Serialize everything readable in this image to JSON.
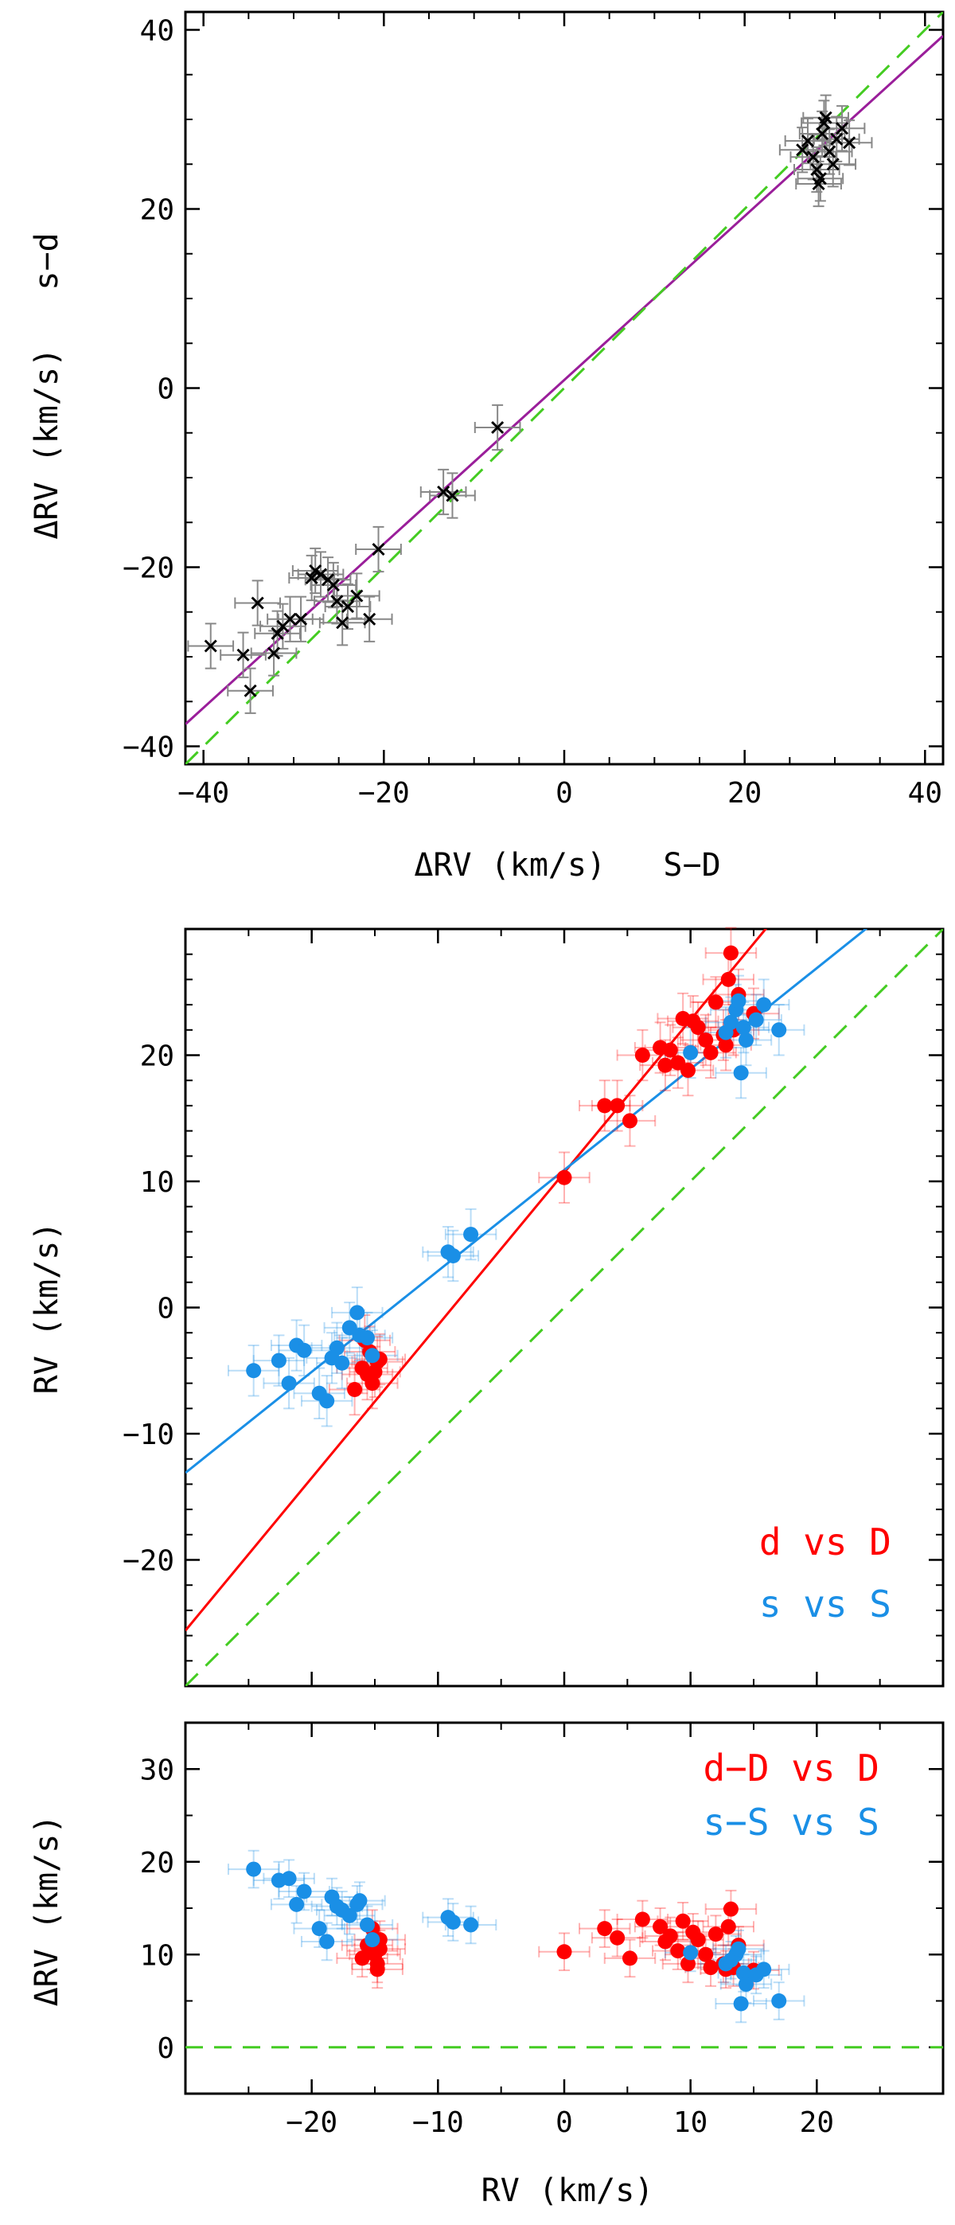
{
  "chart_data": [
    {
      "type": "scatter",
      "xlabel": "ΔRV (km/s)   S−D",
      "ylabel": "ΔRV (km/s)   s−d",
      "xlim": [
        -42,
        42
      ],
      "ylim": [
        -42,
        42
      ],
      "xticks": [
        -40,
        -20,
        0,
        20,
        40
      ],
      "yticks": [
        -40,
        -20,
        0,
        20,
        40
      ],
      "xtick_labels": [
        "−40",
        "−20",
        "0",
        "20",
        "40"
      ],
      "ytick_labels": [
        "−40",
        "−20",
        "0",
        "20",
        "40"
      ],
      "marker": "x",
      "marker_color": "#000000",
      "errorbar_color": "#888888",
      "series": [
        {
          "x": [
            -39.2,
            -35.6,
            -34.8,
            -34.0,
            -32.2,
            -31.8,
            -31.2,
            -30.4,
            -29.2,
            -28.0,
            -27.6,
            -27.0,
            -26.2,
            -25.6,
            -25.2,
            -24.6,
            -24.0,
            -23.0,
            -21.6,
            -20.6,
            -13.4,
            -12.4,
            -7.4,
            26.4,
            27.0,
            27.6,
            28.0,
            28.2,
            28.4,
            28.6,
            28.8,
            29.0,
            29.4,
            29.8,
            30.2,
            30.8,
            31.6
          ],
          "y": [
            -28.8,
            -29.8,
            -33.8,
            -24.0,
            -29.6,
            -27.4,
            -26.6,
            -25.8,
            -25.8,
            -21.2,
            -20.4,
            -20.8,
            -21.4,
            -22.0,
            -23.8,
            -26.2,
            -24.4,
            -23.2,
            -25.8,
            -18.0,
            -11.6,
            -12.0,
            -4.4,
            26.6,
            27.6,
            25.8,
            24.4,
            22.8,
            23.4,
            28.4,
            29.6,
            30.2,
            26.4,
            25.0,
            27.8,
            29.0,
            27.4
          ],
          "xerr": 2.5,
          "yerr": 2.5
        }
      ],
      "lines": [
        {
          "name": "",
          "color": "#9a1e9a",
          "style": "solid",
          "slope": 0.915,
          "intercept": 0.9
        },
        {
          "name": "",
          "color": "#44cc22",
          "style": "dashed",
          "slope": 1.0,
          "intercept": 0
        }
      ]
    },
    {
      "type": "scatter",
      "xlabel": "",
      "ylabel": "RV (km/s)",
      "xlim": [
        -30,
        30
      ],
      "ylim": [
        -30,
        30
      ],
      "yticks": [
        -20,
        -10,
        0,
        10,
        20
      ],
      "ytick_labels": [
        "−20",
        "−10",
        "0",
        "10",
        "20"
      ],
      "xticks": [
        -20,
        -10,
        0,
        10,
        20
      ],
      "series": [
        {
          "name": "d vs D",
          "color": "#ff0000",
          "x": [
            0.0,
            3.2,
            4.2,
            5.2,
            6.2,
            7.6,
            8.0,
            8.4,
            9.0,
            9.4,
            9.8,
            10.2,
            10.6,
            11.2,
            11.6,
            12.0,
            12.6,
            12.8,
            13.0,
            13.2,
            13.4,
            13.8,
            15.0,
            -16.6,
            -16.0,
            -15.8,
            -15.6,
            -15.4,
            -15.2,
            -15.0,
            -14.8,
            -14.6
          ],
          "y": [
            10.3,
            16.0,
            16.0,
            14.8,
            20.0,
            20.6,
            19.2,
            20.4,
            19.4,
            22.9,
            18.8,
            22.7,
            22.2,
            21.2,
            20.2,
            24.2,
            21.6,
            20.8,
            26.0,
            28.1,
            22.0,
            24.8,
            23.3,
            -6.5,
            -4.8,
            -2.6,
            -5.3,
            -3.5,
            -6.0,
            -5.1,
            -4.3,
            -4.1
          ],
          "xerr": 2.0,
          "yerr": 2.0
        },
        {
          "name": "s vs S",
          "color": "#1a8fe6",
          "x": [
            -24.6,
            -22.6,
            -21.8,
            -21.2,
            -20.6,
            -19.4,
            -18.8,
            -18.4,
            -18.0,
            -17.6,
            -17.0,
            -16.4,
            -16.2,
            -15.6,
            -15.2,
            -9.2,
            -8.8,
            -7.4,
            10.0,
            12.8,
            13.2,
            13.6,
            13.8,
            14.0,
            14.2,
            14.4,
            15.2,
            15.8,
            17.0
          ],
          "y": [
            -5.0,
            -4.2,
            -6.0,
            -3.0,
            -3.4,
            -6.8,
            -7.4,
            -4.0,
            -3.2,
            -4.4,
            -1.6,
            -0.4,
            -2.2,
            -2.4,
            -3.8,
            4.4,
            4.1,
            5.8,
            20.2,
            21.8,
            22.6,
            23.6,
            24.3,
            18.6,
            22.2,
            21.2,
            22.8,
            24.0,
            22.0
          ],
          "xerr": 2.0,
          "yerr": 2.0
        }
      ],
      "lines": [
        {
          "name": "d vs D fit",
          "color": "#ff0000",
          "style": "solid",
          "slope": 1.21,
          "intercept": 10.7
        },
        {
          "name": "s vs S fit",
          "color": "#1a8fe6",
          "style": "solid",
          "slope": 0.8,
          "intercept": 10.9
        },
        {
          "name": "",
          "color": "#44cc22",
          "style": "dashed",
          "slope": 1.0,
          "intercept": 0
        }
      ],
      "legend": [
        {
          "text": "d vs D",
          "color": "#ff0000"
        },
        {
          "text": "s vs S",
          "color": "#1a8fe6"
        }
      ],
      "legend_position": "bottom-right"
    },
    {
      "type": "scatter",
      "xlabel": "RV (km/s)",
      "ylabel": "ΔRV (km/s)",
      "xlim": [
        -30,
        30
      ],
      "ylim": [
        -5,
        35
      ],
      "xticks": [
        -20,
        -10,
        0,
        10,
        20
      ],
      "xtick_labels": [
        "−20",
        "−10",
        "0",
        "10",
        "20"
      ],
      "yticks": [
        0,
        10,
        20,
        30
      ],
      "ytick_labels": [
        "0",
        "10",
        "20",
        "30"
      ],
      "series": [
        {
          "name": "d−D vs D",
          "color": "#ff0000",
          "x": [
            0.0,
            3.2,
            4.2,
            5.2,
            6.2,
            7.6,
            8.0,
            8.4,
            9.0,
            9.4,
            9.8,
            10.2,
            10.6,
            11.2,
            11.6,
            12.0,
            12.6,
            12.8,
            13.0,
            13.2,
            13.4,
            13.8,
            15.0,
            -16.0,
            -15.6,
            -15.2,
            -15.0,
            -14.8,
            -14.6,
            -14.6,
            -14.8,
            -15.2
          ],
          "y": [
            10.3,
            12.8,
            11.8,
            9.6,
            13.8,
            13.0,
            11.4,
            12.0,
            10.4,
            13.6,
            9.0,
            12.4,
            11.6,
            10.0,
            8.6,
            12.2,
            9.0,
            8.4,
            13.0,
            14.9,
            8.6,
            11.0,
            8.3,
            9.6,
            11.0,
            12.8,
            10.0,
            8.4,
            10.6,
            11.6,
            9.0,
            10.4
          ],
          "xerr": 2.0,
          "yerr": 2.0
        },
        {
          "name": "s−S vs S",
          "color": "#1a8fe6",
          "x": [
            -24.6,
            -22.6,
            -21.8,
            -21.2,
            -20.6,
            -19.4,
            -18.8,
            -18.4,
            -18.0,
            -17.6,
            -17.0,
            -16.4,
            -16.2,
            -15.6,
            -15.2,
            -9.2,
            -8.8,
            -7.4,
            10.0,
            12.8,
            13.2,
            13.6,
            13.8,
            14.0,
            14.2,
            14.4,
            15.2,
            15.8,
            17.0
          ],
          "y": [
            19.2,
            18.0,
            18.2,
            15.4,
            16.8,
            12.8,
            11.4,
            16.2,
            15.2,
            14.8,
            14.2,
            15.4,
            15.8,
            13.2,
            11.6,
            14.0,
            13.5,
            13.2,
            10.2,
            9.0,
            9.4,
            10.0,
            10.6,
            4.7,
            8.0,
            6.8,
            7.8,
            8.4,
            5.0
          ],
          "xerr": 2.0,
          "yerr": 2.0
        }
      ],
      "lines": [
        {
          "name": "",
          "color": "#44cc22",
          "style": "dashed",
          "slope": 0,
          "intercept": 0
        }
      ],
      "legend": [
        {
          "text": "d−D vs D",
          "color": "#ff0000"
        },
        {
          "text": "s−S vs S",
          "color": "#1a8fe6"
        }
      ],
      "legend_position": "top-right"
    }
  ]
}
